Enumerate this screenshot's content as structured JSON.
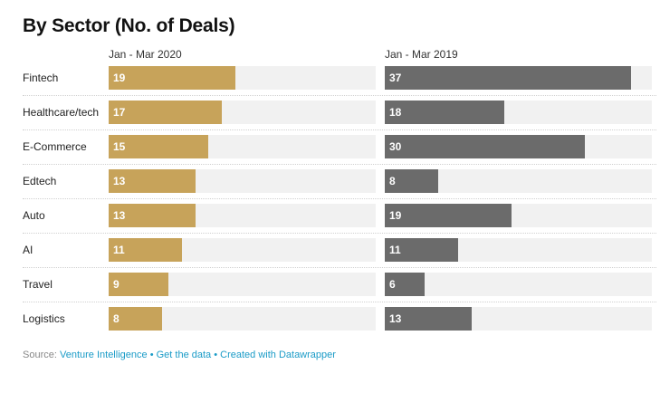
{
  "title": "By Sector (No. of Deals)",
  "chart_data": {
    "type": "bar",
    "orientation": "horizontal",
    "categories": [
      "Fintech",
      "Healthcare/tech",
      "E-Commerce",
      "Edtech",
      "Auto",
      "AI",
      "Travel",
      "Logistics"
    ],
    "series": [
      {
        "name": "Jan - Mar 2020",
        "values": [
          19,
          17,
          15,
          13,
          13,
          11,
          9,
          8
        ],
        "color": "#c7a35a"
      },
      {
        "name": "Jan - Mar 2019",
        "values": [
          37,
          18,
          30,
          8,
          19,
          11,
          6,
          13
        ],
        "color": "#6b6b6b"
      }
    ],
    "xlim": [
      0,
      40
    ],
    "track_color": "#f1f1f1",
    "grid": false,
    "value_labels": "inside-left"
  },
  "footer": {
    "source_label": "Source:",
    "source_link": "Venture Intelligence",
    "separator": "•",
    "data_link": "Get the data",
    "credit_link": "Created with Datawrapper"
  }
}
